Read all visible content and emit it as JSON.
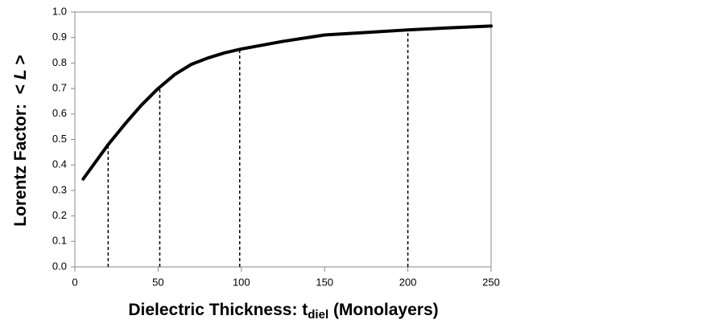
{
  "chart_data": {
    "type": "line",
    "xlabel": {
      "text": "Dielectric Thickness: t",
      "sub": "diel",
      "after": " (Monolayers)"
    },
    "ylabel": {
      "text": "Lorentz Factor:  <",
      "italic": "L",
      "after": ">"
    },
    "x": [
      5,
      10,
      15,
      20,
      30,
      40,
      50,
      60,
      70,
      80,
      90,
      100,
      125,
      150,
      175,
      200,
      225,
      250
    ],
    "series": [
      {
        "color": "#000000",
        "values": [
          0.345,
          0.39,
          0.435,
          0.48,
          0.56,
          0.635,
          0.7,
          0.755,
          0.795,
          0.82,
          0.84,
          0.855,
          0.885,
          0.91,
          0.92,
          0.93,
          0.938,
          0.945
        ]
      }
    ],
    "dashed_lines": {
      "x": [
        20,
        51,
        99,
        200
      ],
      "y": [
        0.48,
        0.7,
        0.85,
        0.93
      ]
    },
    "xlim": [
      0,
      250
    ],
    "xticks": [
      0,
      50,
      100,
      150,
      200,
      250
    ],
    "ylim": [
      0,
      1
    ],
    "yticks": [
      {
        "value": 0,
        "label": "0.0"
      },
      0.1,
      0.2,
      0.3,
      0.4,
      0.5,
      0.6,
      0.7,
      0.8,
      0.9,
      {
        "value": 1,
        "label": "1.0"
      }
    ]
  }
}
